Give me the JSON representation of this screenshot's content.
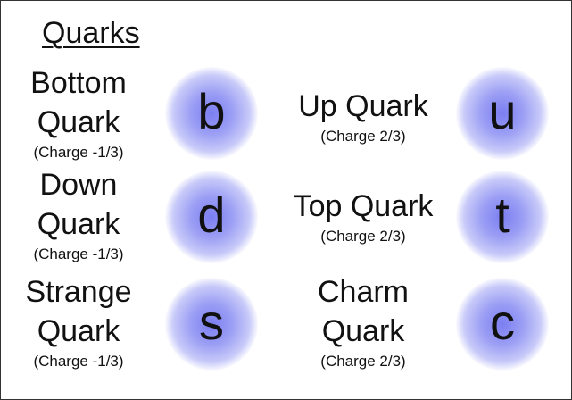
{
  "title": "Quarks",
  "quarks": [
    {
      "name_lines": [
        "Bottom",
        "Quark"
      ],
      "charge": "(Charge -1/3)",
      "symbol": "b"
    },
    {
      "name_lines": [
        "Up Quark"
      ],
      "charge": "(Charge 2/3)",
      "symbol": "u"
    },
    {
      "name_lines": [
        "Down",
        "Quark"
      ],
      "charge": "(Charge -1/3)",
      "symbol": "d"
    },
    {
      "name_lines": [
        "Top Quark"
      ],
      "charge": "(Charge 2/3)",
      "symbol": "t"
    },
    {
      "name_lines": [
        "Strange",
        "Quark"
      ],
      "charge": "(Charge -1/3)",
      "symbol": "s"
    },
    {
      "name_lines": [
        "Charm",
        "Quark"
      ],
      "charge": "(Charge 2/3)",
      "symbol": "c"
    }
  ],
  "glow_color": "#7b7ef1"
}
